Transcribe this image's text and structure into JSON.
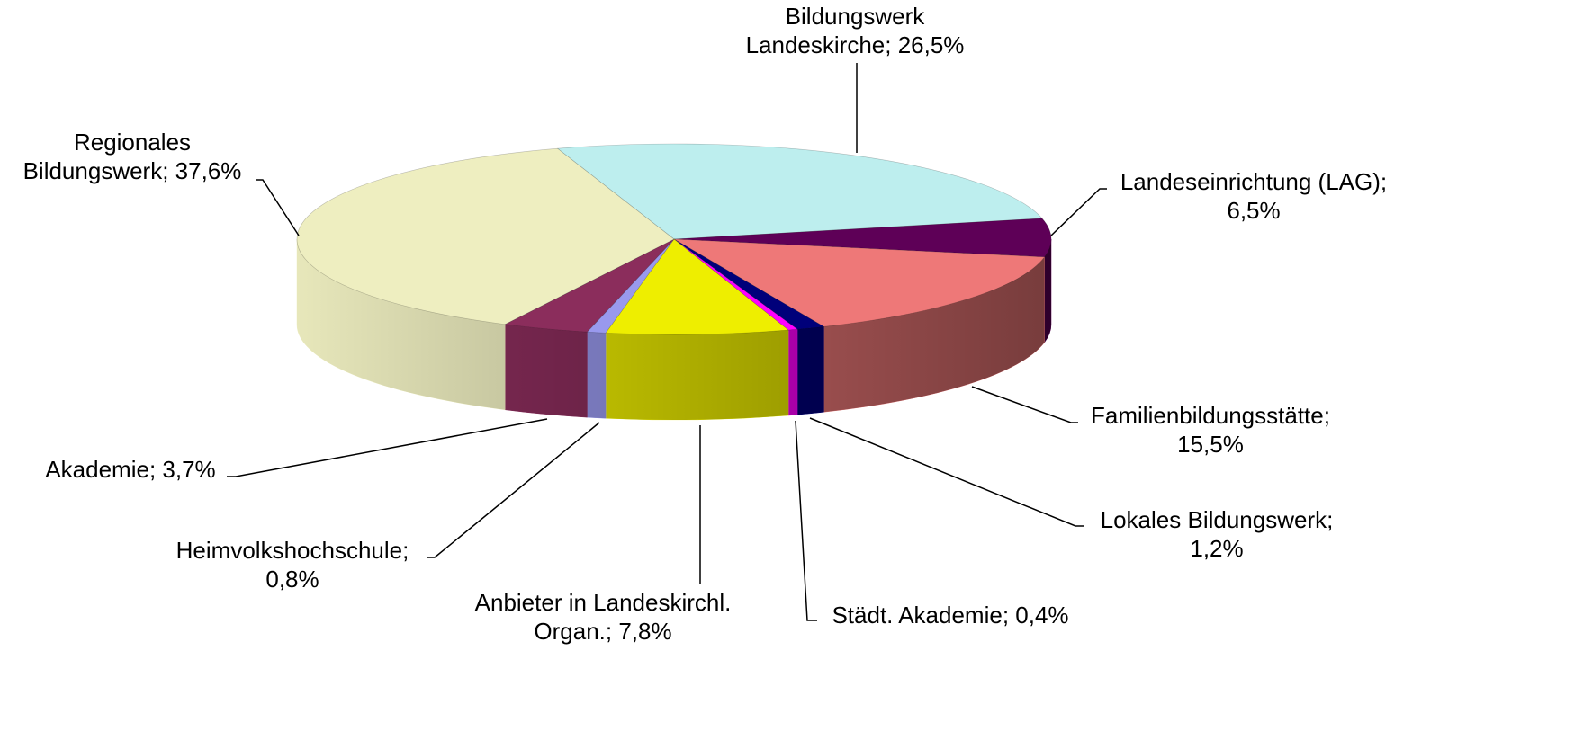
{
  "chart_data": {
    "type": "pie",
    "categories": [
      "Bildungswerk Landeskirche",
      "Landeseinrichtung (LAG)",
      "Familienbildungsstätte",
      "Lokales Bildungswerk",
      "Städt. Akademie",
      "Anbieter in Landeskirchl. Organ.",
      "Heimvolkshochschule",
      "Akademie",
      "Regionales Bildungswerk"
    ],
    "values": [
      26.5,
      6.5,
      15.5,
      1.2,
      0.4,
      7.8,
      0.8,
      3.7,
      37.6
    ],
    "value_labels": [
      "26,5%",
      "6,5%",
      "15,5%",
      "1,2%",
      "0,4%",
      "7,8%",
      "0,8%",
      "3,7%",
      "37,6%"
    ],
    "separator": "; ",
    "colors": [
      "#bdeeee",
      "#5e0057",
      "#ee7878",
      "#00007a",
      "#ff00ff",
      "#eeee00",
      "#9999ee",
      "#8b2d5c",
      "#eeeec0"
    ]
  }
}
